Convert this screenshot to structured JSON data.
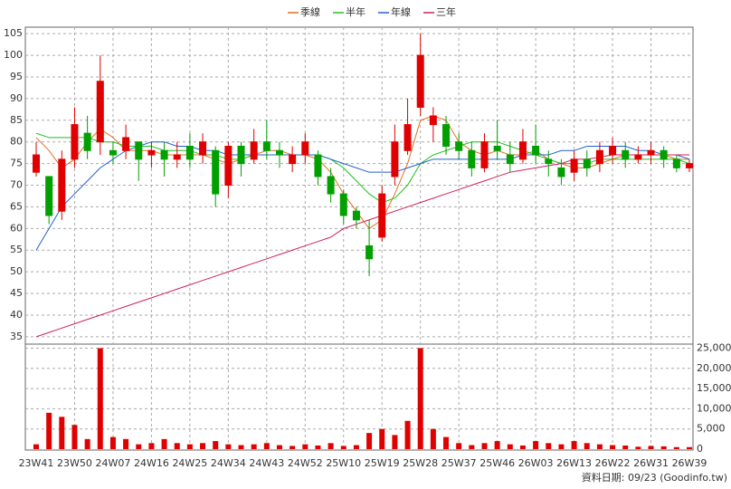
{
  "chart_data": {
    "type": "candlestick",
    "categories": [
      "23W41",
      null,
      null,
      "23W50",
      null,
      null,
      "24W07",
      null,
      null,
      "24W16",
      null,
      null,
      "24W25",
      null,
      null,
      "24W34",
      null,
      null,
      "24W43",
      null,
      null,
      "24W52",
      null,
      null,
      "25W10",
      null,
      null,
      "25W19",
      null,
      null,
      "25W28",
      null,
      null,
      "25W37",
      null,
      null,
      "25W46",
      null,
      null,
      "26W03",
      null,
      null,
      "26W13",
      null,
      null,
      "26W22",
      null,
      null,
      "26W31",
      null,
      null,
      "26W39"
    ],
    "open": [
      73,
      72,
      64,
      76,
      82,
      80,
      78,
      78,
      80,
      77,
      78,
      76,
      79,
      77,
      78,
      70,
      79,
      76,
      80,
      78,
      75,
      77,
      77,
      72,
      68,
      64,
      56,
      58,
      72,
      78,
      88,
      84,
      84,
      80,
      78,
      74,
      79,
      77,
      76,
      79,
      76,
      74,
      73,
      76,
      75,
      77,
      78,
      76,
      77,
      78,
      76,
      74
    ],
    "high": [
      80,
      72,
      78,
      88,
      86,
      100,
      80,
      84,
      80,
      80,
      80,
      80,
      82,
      82,
      79,
      80,
      80,
      83,
      85,
      80,
      79,
      82,
      78,
      74,
      69,
      65,
      62,
      70,
      84,
      90,
      105,
      88,
      86,
      82,
      80,
      82,
      85,
      80,
      83,
      84,
      78,
      76,
      78,
      78,
      80,
      81,
      80,
      79,
      80,
      79,
      77,
      76
    ],
    "low": [
      72,
      61,
      62,
      74,
      76,
      77,
      75,
      76,
      71,
      74,
      72,
      74,
      74,
      75,
      65,
      67,
      72,
      75,
      76,
      74,
      73,
      75,
      70,
      66,
      61,
      60,
      49,
      57,
      70,
      77,
      86,
      80,
      77,
      76,
      72,
      73,
      76,
      73,
      75,
      75,
      72,
      70,
      71,
      72,
      73,
      75,
      74,
      75,
      75,
      74,
      73,
      73
    ],
    "close": [
      77,
      63,
      76,
      84,
      78,
      94,
      77,
      81,
      76,
      78,
      76,
      77,
      76,
      80,
      68,
      79,
      75,
      80,
      78,
      77,
      77,
      80,
      72,
      68,
      63,
      62,
      53,
      68,
      80,
      84,
      100,
      86,
      79,
      78,
      74,
      80,
      78,
      75,
      80,
      77,
      75,
      72,
      76,
      74,
      78,
      79,
      76,
      77,
      78,
      76,
      74,
      75
    ],
    "volume": [
      1200,
      9000,
      8000,
      6000,
      2500,
      25000,
      3000,
      2500,
      1200,
      1500,
      2500,
      1500,
      1200,
      1500,
      2000,
      1200,
      1000,
      1200,
      1500,
      1000,
      800,
      1200,
      900,
      1500,
      800,
      1000,
      4000,
      5000,
      3500,
      7000,
      25000,
      5000,
      3000,
      1500,
      1000,
      1500,
      2000,
      1200,
      900,
      2000,
      1500,
      1200,
      2000,
      1500,
      1200,
      1000,
      900,
      600,
      800,
      700,
      500,
      500
    ],
    "up_color": "#e00000",
    "down_color": "#00a000",
    "volume_color": "#e00000",
    "series": [
      {
        "name": "季線",
        "color": "#e07020",
        "values": [
          81,
          78,
          74,
          76,
          80,
          83,
          81,
          78,
          78,
          78,
          77,
          77,
          77,
          77,
          76,
          75,
          76,
          77,
          78,
          78,
          77,
          77,
          76,
          73,
          68,
          64,
          60,
          62,
          68,
          75,
          85,
          86,
          85,
          80,
          78,
          77,
          78,
          77,
          77,
          78,
          76,
          75,
          74,
          74,
          75,
          76,
          77,
          77,
          77,
          77,
          76,
          76
        ]
      },
      {
        "name": "半年",
        "color": "#20c020",
        "values": [
          82,
          81,
          81,
          81,
          81,
          80,
          80,
          79,
          79,
          79,
          78,
          78,
          78,
          77,
          77,
          76,
          76,
          77,
          77,
          77,
          77,
          77,
          77,
          76,
          74,
          71,
          68,
          66,
          67,
          70,
          75,
          77,
          78,
          79,
          80,
          80,
          80,
          79,
          78,
          77,
          76,
          75,
          75,
          75,
          76,
          76,
          76,
          76,
          76,
          76,
          76,
          75
        ]
      },
      {
        "name": "年線",
        "color": "#2060d0",
        "values": [
          55,
          60,
          65,
          68,
          71,
          74,
          76,
          78,
          79,
          80,
          80,
          79,
          79,
          78,
          78,
          77,
          77,
          77,
          77,
          77,
          77,
          77,
          77,
          76,
          75,
          74,
          73,
          73,
          73,
          74,
          75,
          76,
          76,
          76,
          76,
          76,
          76,
          76,
          77,
          77,
          77,
          78,
          78,
          79,
          79,
          79,
          79,
          78,
          78,
          77,
          77,
          76
        ]
      },
      {
        "name": "三年",
        "color": "#d0205a",
        "values": [
          35,
          36,
          37,
          38,
          39,
          40,
          41,
          42,
          43,
          44,
          45,
          46,
          47,
          48,
          49,
          50,
          51,
          52,
          53,
          54,
          55,
          56,
          57,
          58,
          60,
          61,
          62,
          63,
          64,
          65,
          66,
          67,
          68,
          69,
          70,
          71,
          72,
          73,
          73.5,
          74,
          74.5,
          75,
          76,
          76,
          76.5,
          77,
          77,
          77,
          77,
          77,
          77,
          77
        ]
      }
    ],
    "ylim": [
      33.3,
      106.5
    ],
    "yticks": [
      35,
      40,
      45,
      50,
      55,
      60,
      65,
      70,
      75,
      80,
      85,
      90,
      95,
      100,
      105
    ],
    "y2lim": [
      0,
      26000
    ],
    "y2ticks": [
      0,
      {
        "value": 5000,
        "label": "5,000"
      },
      {
        "value": 10000,
        "label": "10,000"
      },
      {
        "value": 15000,
        "label": "15,000"
      },
      {
        "value": 20000,
        "label": "20,000"
      },
      {
        "value": 25000,
        "label": "25,000"
      }
    ],
    "grid": true,
    "source": "資料日期: 09/23 (Goodinfo.tw)"
  }
}
